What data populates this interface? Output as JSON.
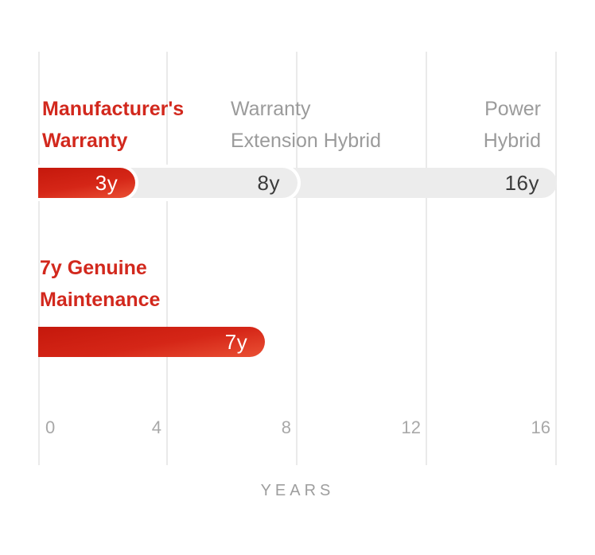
{
  "chart_data": {
    "type": "bar",
    "orientation": "horizontal",
    "title": "",
    "xlabel": "YEARS",
    "ylabel": "",
    "xlim": [
      0,
      16
    ],
    "x_ticks": [
      "0",
      "4",
      "8",
      "12",
      "16"
    ],
    "grid": true,
    "rows": [
      {
        "name": "warranty-coverage",
        "segments": [
          {
            "label": "Manufacturer's Warranty",
            "label_lines": [
              "Manufacturer's",
              "Warranty"
            ],
            "years": 3,
            "display": "3y",
            "color_key": "red"
          },
          {
            "label": "Warranty Extension Hybrid",
            "label_lines": [
              "Warranty",
              "Extension Hybrid"
            ],
            "years": 8,
            "display": "8y",
            "color_key": "gray"
          },
          {
            "label": "Power Hybrid",
            "label_lines": [
              "Power",
              "Hybrid"
            ],
            "years": 16,
            "display": "16y",
            "color_key": "gray"
          }
        ]
      },
      {
        "name": "genuine-maintenance",
        "segments": [
          {
            "label": "7y Genuine Maintenance",
            "label_lines": [
              "7y Genuine",
              "Maintenance"
            ],
            "years": 7,
            "display": "7y",
            "color_key": "red"
          }
        ]
      }
    ]
  },
  "colors": {
    "accent_red_text": "#d2281d",
    "red_bar_gradient_top": "#c5180c",
    "red_bar_gradient_bottom": "#ea5034",
    "gray_bar": "#ececec",
    "value_text_dark": "#3b3b3b",
    "value_text_light": "#ffffff",
    "label_gray": "#9b9b9b",
    "tick_gray": "#a8a8a8",
    "gridline": "#eaeaea",
    "background": "#ffffff"
  }
}
